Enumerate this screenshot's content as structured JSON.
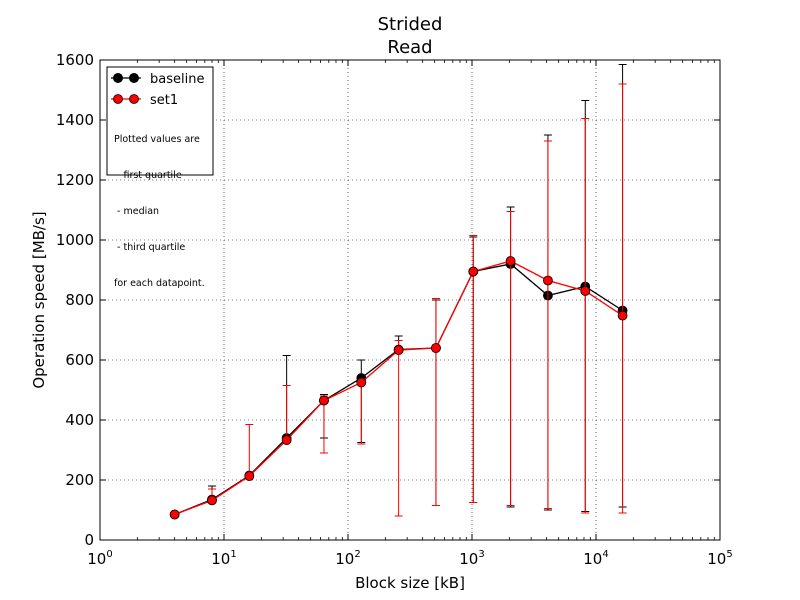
{
  "chart_data": {
    "type": "line",
    "title_lines": [
      "Strided",
      "Read"
    ],
    "xlabel": "Block size [kB]",
    "ylabel": "Operation speed [MB/s]",
    "x_scale": "log",
    "xlim": [
      1,
      100000
    ],
    "ylim": [
      0,
      1600
    ],
    "x_tick_labels": [
      {
        "base": "10",
        "exp": "0"
      },
      {
        "base": "10",
        "exp": "1"
      },
      {
        "base": "10",
        "exp": "2"
      },
      {
        "base": "10",
        "exp": "3"
      },
      {
        "base": "10",
        "exp": "4"
      },
      {
        "base": "10",
        "exp": "5"
      }
    ],
    "y_ticks": [
      0,
      200,
      400,
      600,
      800,
      1000,
      1200,
      1400,
      1600
    ],
    "grid": true,
    "legend_position": "top-left",
    "x": [
      4,
      8,
      16,
      32,
      64,
      128,
      256,
      512,
      1024,
      2048,
      4096,
      8192,
      16384
    ],
    "series": [
      {
        "name": "baseline",
        "color": "#000000",
        "median": [
          85,
          135,
          215,
          340,
          465,
          540,
          635,
          640,
          895,
          920,
          815,
          845,
          765
        ],
        "q1": [
          85,
          130,
          210,
          335,
          340,
          325,
          630,
          115,
          125,
          110,
          100,
          95,
          110
        ],
        "q3": [
          88,
          180,
          220,
          615,
          485,
          600,
          680,
          800,
          1010,
          1110,
          1350,
          1465,
          1585
        ]
      },
      {
        "name": "set1",
        "color": "#ff0000",
        "median": [
          85,
          132,
          213,
          333,
          465,
          525,
          633,
          640,
          895,
          930,
          865,
          830,
          748
        ],
        "q1": [
          80,
          128,
          208,
          328,
          290,
          320,
          80,
          115,
          125,
          115,
          105,
          90,
          90
        ],
        "q3": [
          90,
          170,
          385,
          515,
          480,
          525,
          665,
          805,
          1015,
          1095,
          1330,
          1405,
          1520
        ]
      }
    ],
    "legend_note": [
      "Plotted values are",
      " - first quartile",
      " - median",
      " - third quartile",
      "for each datapoint."
    ]
  }
}
